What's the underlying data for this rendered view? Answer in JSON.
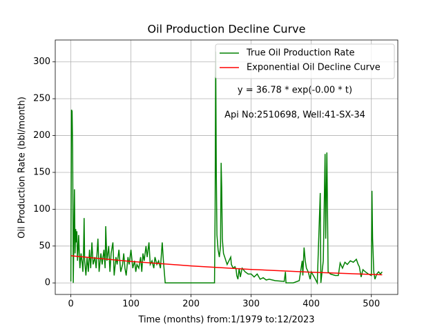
{
  "chart_data": {
    "type": "line",
    "title": "Oil Production Decline Curve",
    "xlabel": "Time (months) from:1/1979 to:12/2023",
    "ylabel": "Oil Production Rate (bbl/month)",
    "annotations": [
      "y = 36.78 * exp(-0.00 * t)",
      "Api No:2510698, Well:41-SX-34"
    ],
    "xlim": [
      -26,
      544
    ],
    "ylim": [
      -15.7,
      329.7
    ],
    "xticks": [
      0,
      100,
      200,
      300,
      400,
      500
    ],
    "yticks": [
      0,
      50,
      100,
      150,
      200,
      250,
      300
    ],
    "grid": true,
    "legend": "upper right",
    "series": [
      {
        "name": "True Oil Production Rate",
        "color": "#008000",
        "x": [
          0,
          1,
          2,
          3,
          4,
          5,
          6,
          7,
          8,
          9,
          10,
          11,
          12,
          13,
          15,
          17,
          19,
          20,
          21,
          22,
          23,
          25,
          27,
          29,
          31,
          33,
          35,
          37,
          40,
          42,
          45,
          47,
          50,
          52,
          55,
          57,
          58,
          60,
          63,
          65,
          67,
          70,
          72,
          75,
          77,
          80,
          83,
          86,
          88,
          90,
          92,
          95,
          97,
          100,
          103,
          106,
          108,
          110,
          113,
          116,
          118,
          120,
          122,
          125,
          127,
          130,
          132,
          135,
          138,
          140,
          143,
          146,
          149,
          152,
          154,
          157,
          239,
          240,
          241,
          242,
          243,
          245,
          247,
          249,
          250,
          251,
          252,
          254,
          256,
          258,
          260,
          263,
          266,
          267,
          270,
          273,
          275,
          276,
          278,
          280,
          282,
          285,
          290,
          295,
          300,
          305,
          310,
          315,
          320,
          325,
          330,
          340,
          355,
          357,
          358,
          370,
          380,
          385,
          386,
          388,
          390,
          392,
          395,
          398,
          400,
          405,
          410,
          415,
          416,
          420,
          423,
          424,
          426,
          427,
          428,
          432,
          440,
          445,
          448,
          452,
          456,
          460,
          465,
          470,
          475,
          478,
          480,
          483,
          486,
          490,
          495,
          500,
          501,
          502,
          503,
          504,
          506,
          509,
          512,
          515,
          518
        ],
        "values": [
          2,
          235,
          233,
          180,
          0,
          60,
          127,
          40,
          73,
          55,
          70,
          30,
          45,
          65,
          20,
          40,
          25,
          15,
          40,
          88,
          30,
          10,
          35,
          15,
          45,
          20,
          55,
          25,
          35,
          20,
          60,
          15,
          40,
          25,
          45,
          20,
          77,
          30,
          50,
          15,
          40,
          55,
          10,
          35,
          25,
          45,
          15,
          25,
          40,
          20,
          10,
          35,
          25,
          45,
          20,
          30,
          15,
          25,
          20,
          35,
          15,
          40,
          30,
          50,
          35,
          55,
          25,
          30,
          20,
          35,
          25,
          30,
          20,
          55,
          30,
          0,
          0,
          100,
          314,
          150,
          65,
          45,
          35,
          50,
          163,
          130,
          60,
          40,
          35,
          30,
          25,
          30,
          35,
          25,
          20,
          22,
          18,
          10,
          5,
          20,
          8,
          20,
          15,
          12,
          12,
          8,
          12,
          5,
          7,
          4,
          5,
          3,
          2,
          15,
          0,
          0,
          3,
          30,
          10,
          48,
          30,
          20,
          15,
          5,
          15,
          8,
          0,
          122,
          0,
          30,
          175,
          60,
          177,
          100,
          15,
          12,
          10,
          10,
          27,
          20,
          28,
          25,
          30,
          28,
          32,
          25,
          22,
          8,
          18,
          15,
          12,
          10,
          125,
          60,
          40,
          15,
          5,
          12,
          15,
          12,
          15
        ]
      },
      {
        "name": "Exponential Oil Decline Curve",
        "color": "#ff0000",
        "x": [
          0,
          100,
          200,
          300,
          400,
          518
        ],
        "values": [
          36.78,
          29.14,
          23.09,
          18.29,
          14.49,
          11.0
        ]
      }
    ]
  }
}
